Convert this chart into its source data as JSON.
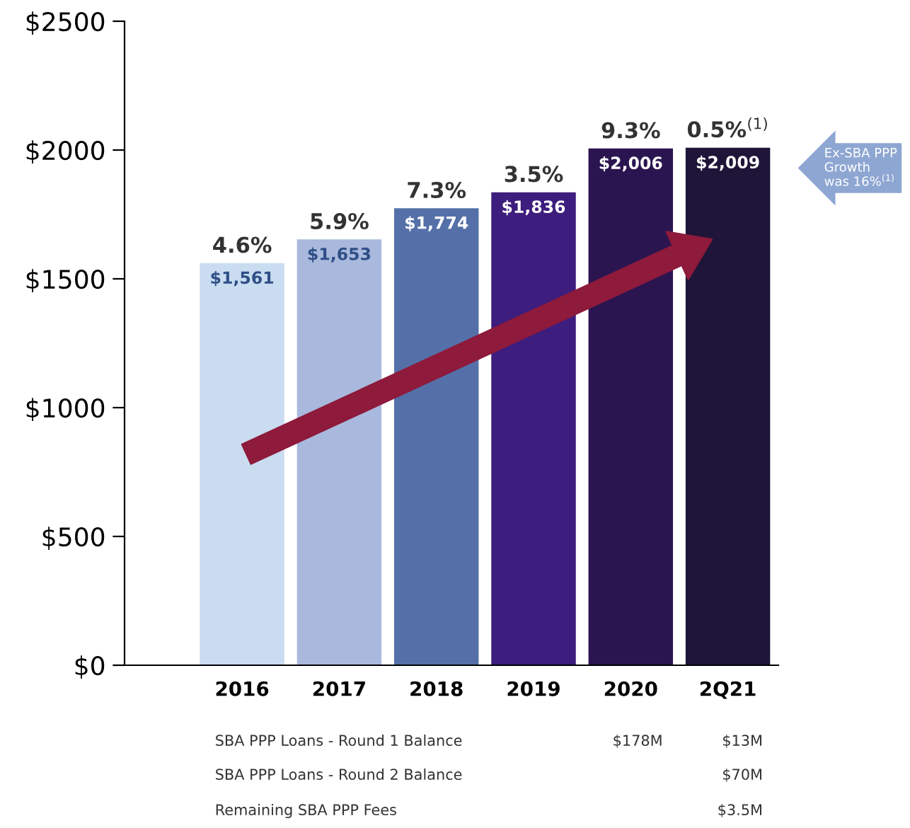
{
  "chart_data": {
    "type": "bar",
    "categories": [
      "2016",
      "2017",
      "2018",
      "2019",
      "2020",
      "2Q21"
    ],
    "values": [
      1561,
      1653,
      1774,
      1836,
      2006,
      2009
    ],
    "colors": [
      "#c9dcf0",
      "#a9b9dd",
      "#5570a9",
      "#3d1d7d",
      "#2b1550",
      "#1e1538"
    ],
    "value_labels": [
      "$1,561",
      "$1,653",
      "$1,774",
      "$1,836",
      "$2,006",
      "$2,009"
    ],
    "ylim": [
      0,
      2500
    ],
    "yticks": [
      {
        "value": 0,
        "label": "$0"
      },
      {
        "value": 500,
        "label": "$500"
      },
      {
        "value": 1000,
        "label": "$1000"
      },
      {
        "value": 1500,
        "label": "$1500"
      },
      {
        "value": 2000,
        "label": "$2000"
      },
      {
        "value": 2500,
        "label": "$2500"
      }
    ],
    "grid": false,
    "legend": false,
    "annotations": [
      {
        "text": "4.6%",
        "x": "2016",
        "y": 1561
      },
      {
        "text": "5.9%",
        "x": "2017",
        "y": 1653
      },
      {
        "text": "7.3%",
        "x": "2018",
        "y": 1774
      },
      {
        "text": "3.5%",
        "x": "2019",
        "y": 1836
      },
      {
        "text": "9.3%",
        "x": "2020",
        "y": 2006
      },
      {
        "text": "0.5%$^{(1)}$",
        "x": "2Q21",
        "y": 2009
      },
      "Ex-SBA PPP\nGrowth\nwas 16%$^{(1)}$",
      "SBA PPP Loans - Round 1 Balance",
      "$178M",
      "$13M",
      "SBA PPP Loans - Round 2 Balance",
      "$70M",
      "Remaining SBA PPP Fees",
      "$3.5M"
    ]
  }
}
